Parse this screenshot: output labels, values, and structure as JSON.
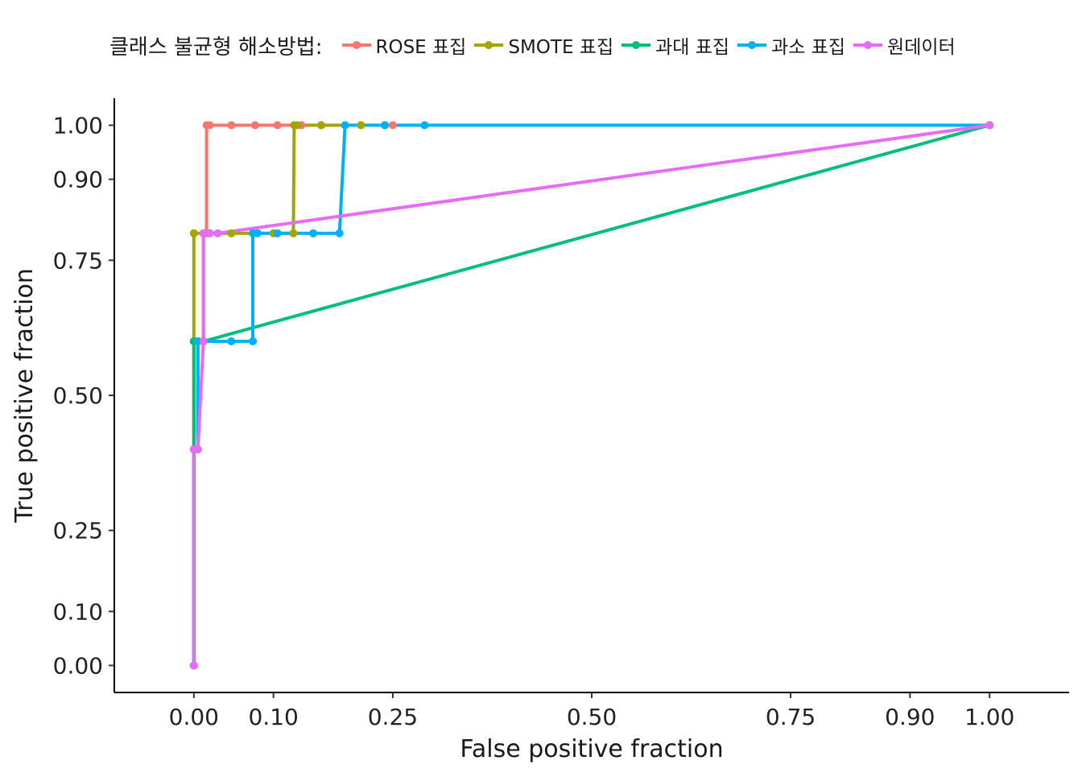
{
  "chart_data": {
    "type": "line",
    "title": "",
    "xlabel": "False positive fraction",
    "ylabel": "True positive fraction",
    "xlim": [
      -0.1,
      1.1
    ],
    "ylim": [
      -0.05,
      1.05
    ],
    "x_ticks": [
      0.0,
      0.1,
      0.25,
      0.5,
      0.75,
      0.9,
      1.0
    ],
    "x_tick_labels": [
      "0.00",
      "0.10",
      "0.25",
      "0.50",
      "0.75",
      "0.90",
      "1.00"
    ],
    "y_ticks": [
      0.0,
      0.1,
      0.25,
      0.5,
      0.75,
      0.9,
      1.0
    ],
    "y_tick_labels": [
      "0.00",
      "0.10",
      "0.25",
      "0.50",
      "0.75",
      "0.90",
      "1.00"
    ],
    "grid": false,
    "legend": {
      "position": "top",
      "title": "클래스 불균형 해소방법:"
    },
    "series": [
      {
        "name": "ROSE 표집",
        "color": "#F8766D",
        "points": [
          [
            0.0,
            0.0
          ],
          [
            0.0,
            0.4
          ],
          [
            0.005,
            0.4
          ],
          [
            0.005,
            0.6
          ],
          [
            0.012,
            0.6
          ],
          [
            0.012,
            0.8
          ],
          [
            0.016,
            0.8
          ],
          [
            0.016,
            1.0
          ],
          [
            0.02,
            1.0
          ],
          [
            0.047,
            1.0
          ],
          [
            0.077,
            1.0
          ],
          [
            0.105,
            1.0
          ],
          [
            0.135,
            1.0
          ],
          [
            0.16,
            1.0
          ],
          [
            0.21,
            1.0
          ],
          [
            0.24,
            1.0
          ],
          [
            0.25,
            1.0
          ],
          [
            1.0,
            1.0
          ]
        ]
      },
      {
        "name": "SMOTE 표집",
        "color": "#A3A500",
        "points": [
          [
            0.0,
            0.0
          ],
          [
            0.0,
            0.6
          ],
          [
            0.0,
            0.8
          ],
          [
            0.02,
            0.8
          ],
          [
            0.047,
            0.8
          ],
          [
            0.1,
            0.8
          ],
          [
            0.125,
            0.8
          ],
          [
            0.126,
            1.0
          ],
          [
            0.13,
            1.0
          ],
          [
            0.16,
            1.0
          ],
          [
            0.21,
            1.0
          ],
          [
            0.24,
            1.0
          ],
          [
            1.0,
            1.0
          ]
        ]
      },
      {
        "name": "과대 표집",
        "color": "#00BF7D",
        "points": [
          [
            0.0,
            0.0
          ],
          [
            0.0,
            0.6
          ],
          [
            0.012,
            0.6
          ],
          [
            1.0,
            1.0
          ]
        ]
      },
      {
        "name": "과소 표집",
        "color": "#00B0F6",
        "points": [
          [
            0.0,
            0.0
          ],
          [
            0.0,
            0.4
          ],
          [
            0.005,
            0.4
          ],
          [
            0.005,
            0.6
          ],
          [
            0.012,
            0.6
          ],
          [
            0.047,
            0.6
          ],
          [
            0.074,
            0.6
          ],
          [
            0.074,
            0.8
          ],
          [
            0.08,
            0.8
          ],
          [
            0.105,
            0.8
          ],
          [
            0.15,
            0.8
          ],
          [
            0.183,
            0.8
          ],
          [
            0.19,
            1.0
          ],
          [
            0.24,
            1.0
          ],
          [
            0.29,
            1.0
          ],
          [
            1.0,
            1.0
          ]
        ]
      },
      {
        "name": "원데이터",
        "color": "#E76BF3",
        "points": [
          [
            0.0,
            0.0
          ],
          [
            0.0,
            0.4
          ],
          [
            0.005,
            0.4
          ],
          [
            0.012,
            0.6
          ],
          [
            0.012,
            0.8
          ],
          [
            0.02,
            0.8
          ],
          [
            0.03,
            0.8
          ],
          [
            1.0,
            1.0
          ]
        ]
      }
    ]
  }
}
